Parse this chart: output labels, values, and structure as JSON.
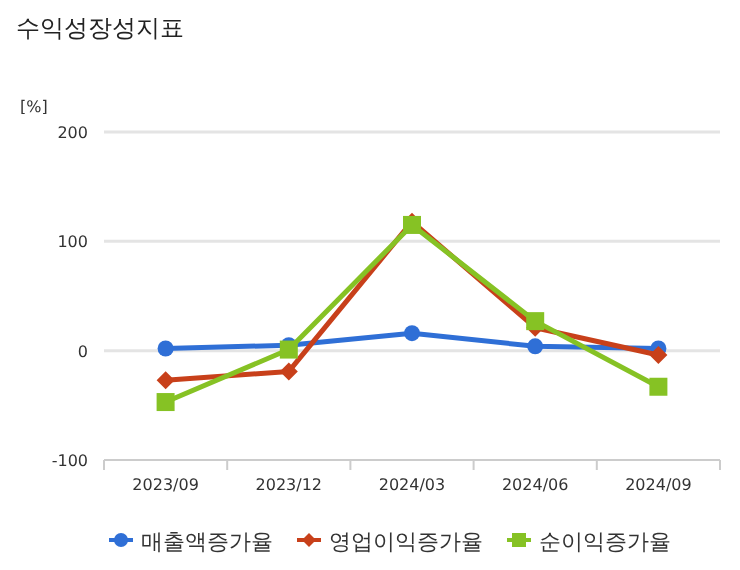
{
  "chart_data": {
    "type": "line",
    "title": "수익성장성지표",
    "ylabel": "[%]",
    "categories": [
      "2023/09",
      "2023/12",
      "2024/03",
      "2024/06",
      "2024/09"
    ],
    "series": [
      {
        "name": "매출액증가율",
        "color": "#2f6fd6",
        "marker": "circle",
        "values": [
          2,
          5,
          16,
          4,
          2
        ]
      },
      {
        "name": "영업이익증가율",
        "color": "#c8401a",
        "marker": "diamond",
        "values": [
          -27,
          -19,
          118,
          21,
          -4
        ]
      },
      {
        "name": "순이익증가율",
        "color": "#86c224",
        "marker": "square",
        "values": [
          -47,
          1,
          115,
          27,
          -33
        ]
      }
    ],
    "ylim": [
      -100,
      200
    ],
    "yticks": [
      -100,
      0,
      100,
      200
    ],
    "grid": "y",
    "legend": "bottom"
  }
}
